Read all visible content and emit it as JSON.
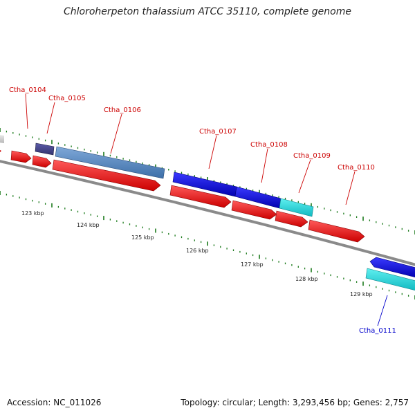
{
  "title": "Chloroherpeton thalassium ATCC 35110, complete genome",
  "footer": {
    "accession": "Accession: NC_011026",
    "summary": "Topology: circular; Length: 3,293,456 bp; Genes: 2,757"
  },
  "colors": {
    "backbone": "#8a8a8a",
    "forward_cds": "#ee1111",
    "reverse_cds": "#1111dd",
    "gene_label_forward": "#cc0000",
    "gene_label_reverse": "#0000cc",
    "tick": "#1a7a1a"
  },
  "scale": {
    "unit": "kbp",
    "labels": [
      "123 kbp",
      "124 kbp",
      "125 kbp",
      "126 kbp",
      "127 kbp",
      "128 kbp",
      "129 kbp"
    ]
  },
  "genes": [
    {
      "name": "Ctha_0104",
      "strand": "forward"
    },
    {
      "name": "Ctha_0105",
      "strand": "forward"
    },
    {
      "name": "Ctha_0106",
      "strand": "forward"
    },
    {
      "name": "Ctha_0107",
      "strand": "forward"
    },
    {
      "name": "Ctha_0108",
      "strand": "forward"
    },
    {
      "name": "Ctha_0109",
      "strand": "forward"
    },
    {
      "name": "Ctha_0110",
      "strand": "forward"
    },
    {
      "name": "Ctha_0111",
      "strand": "reverse"
    }
  ]
}
